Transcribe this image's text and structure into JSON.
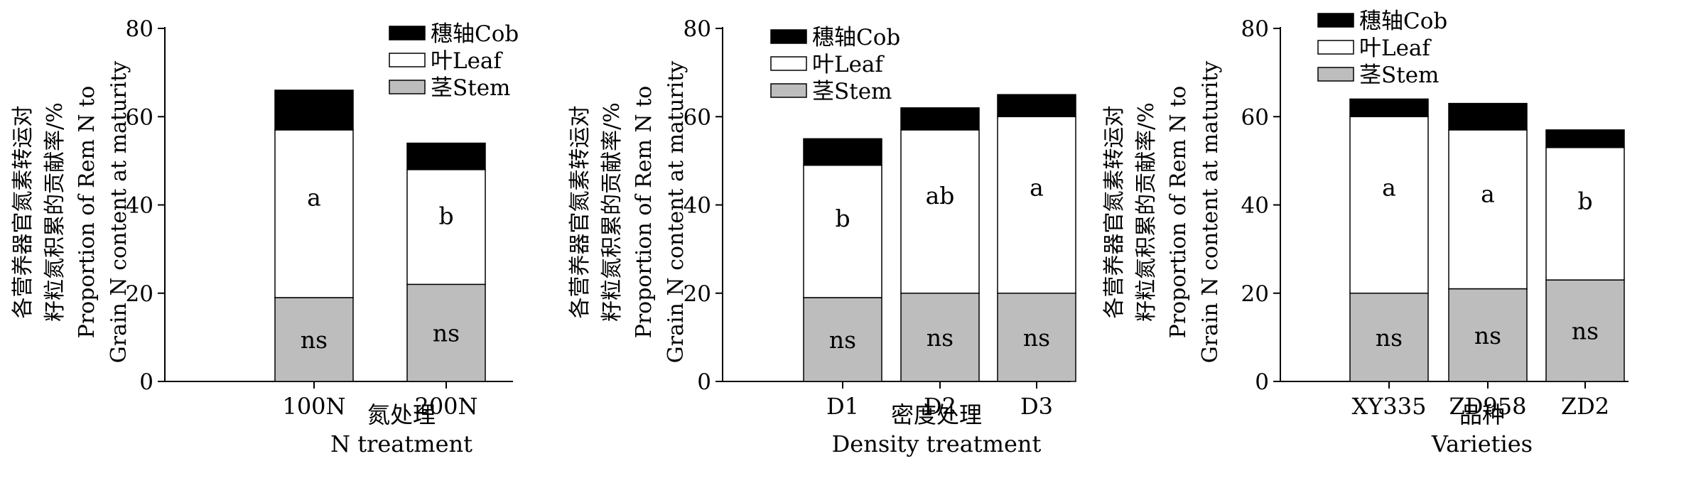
{
  "colors": {
    "cob": "#000000",
    "leaf": "#ffffff",
    "stem": "#bdbdbd",
    "axis": "#000000"
  },
  "chart_data": [
    {
      "type": "bar",
      "stacked": true,
      "ylim": [
        0,
        80
      ],
      "yticks": [
        "0",
        "20",
        "40",
        "60",
        "80"
      ],
      "ylabel": [
        "各营养器官氮素转运对",
        "籽粒氮积累的贡献率/%",
        "Proportion of Rem N to",
        "Grain N content at maturity"
      ],
      "xlabel_cn": "氮处理",
      "xlabel_en": "N treatment",
      "categories": [
        "100N",
        "200N"
      ],
      "legend": [
        "穗轴Cob",
        "叶Leaf",
        "茎Stem"
      ],
      "series": [
        {
          "name": "茎Stem",
          "values": [
            19,
            22
          ],
          "labels": [
            "ns",
            "ns"
          ]
        },
        {
          "name": "叶Leaf",
          "values": [
            38,
            26
          ],
          "labels": [
            "a",
            "b"
          ]
        },
        {
          "name": "穗轴Cob",
          "values": [
            9,
            6
          ]
        }
      ]
    },
    {
      "type": "bar",
      "stacked": true,
      "ylim": [
        0,
        80
      ],
      "yticks": [
        "0",
        "20",
        "40",
        "60",
        "80"
      ],
      "ylabel": [
        "各营养器官氮素转运对",
        "籽粒氮积累的贡献率/%",
        "Proportion of Rem N to",
        "Grain N content at maturity"
      ],
      "xlabel_cn": "密度处理",
      "xlabel_en": "Density treatment",
      "categories": [
        "D1",
        "D2",
        "D3"
      ],
      "legend": [
        "穗轴Cob",
        "叶Leaf",
        "茎Stem"
      ],
      "series": [
        {
          "name": "茎Stem",
          "values": [
            19,
            20,
            20
          ],
          "labels": [
            "ns",
            "ns",
            "ns"
          ]
        },
        {
          "name": "叶Leaf",
          "values": [
            30,
            37,
            40
          ],
          "labels": [
            "b",
            "ab",
            "a"
          ]
        },
        {
          "name": "穗轴Cob",
          "values": [
            6,
            5,
            5
          ]
        }
      ]
    },
    {
      "type": "bar",
      "stacked": true,
      "ylim": [
        0,
        80
      ],
      "yticks": [
        "0",
        "20",
        "40",
        "60",
        "80"
      ],
      "ylabel": [
        "各营养器官氮素转运对",
        "籽粒氮积累的贡献率/%",
        "Proportion of Rem N to",
        "Grain N content at maturity"
      ],
      "xlabel_cn": "品种",
      "xlabel_en": "Varieties",
      "categories": [
        "XY335",
        "ZD958",
        "ZD2"
      ],
      "legend": [
        "穗轴Cob",
        "叶Leaf",
        "茎Stem"
      ],
      "series": [
        {
          "name": "茎Stem",
          "values": [
            20,
            21,
            23
          ],
          "labels": [
            "ns",
            "ns",
            "ns"
          ]
        },
        {
          "name": "叶Leaf",
          "values": [
            40,
            36,
            30
          ],
          "labels": [
            "a",
            "a",
            "b"
          ]
        },
        {
          "name": "穗轴Cob",
          "values": [
            4,
            6,
            4
          ]
        }
      ]
    }
  ]
}
